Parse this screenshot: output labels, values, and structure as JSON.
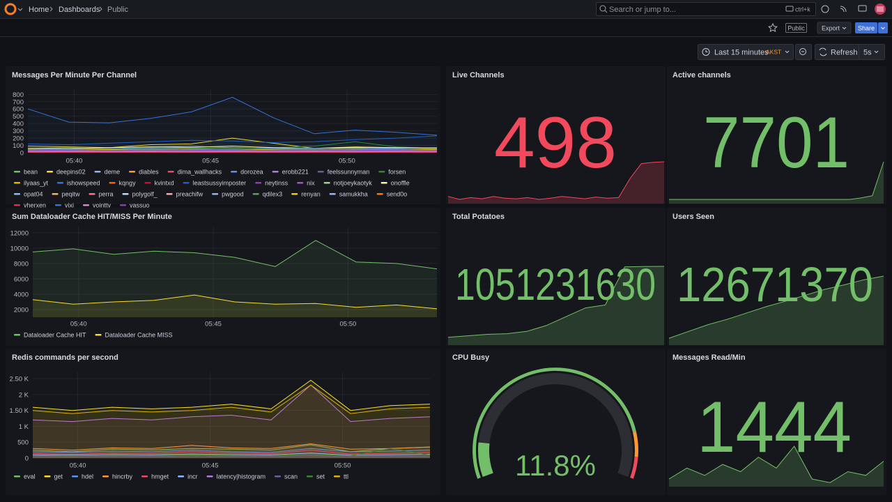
{
  "header": {
    "breadcrumbs": [
      "Home",
      "Dashboards",
      "Public"
    ],
    "search_placeholder": "Search or jump to...",
    "shortcut": "ctrl+k"
  },
  "toolbar": {
    "badge": "Public",
    "export": "Export",
    "share": "Share"
  },
  "time_picker": {
    "range": "Last 15 minutes",
    "timezone": "AKST",
    "refresh": "Refresh",
    "interval": "5s"
  },
  "panels": [
    {
      "type": "line",
      "title": "Messages Per Minute Per Channel",
      "fill_opacity": 0.04,
      "x": [
        38.3,
        39.8,
        41.3,
        42.8,
        44.3,
        45.8,
        47.3,
        48.8,
        50.3,
        51.8,
        53.3
      ],
      "xlim": [
        38.3,
        53.3
      ],
      "xticks": [
        {
          "value": 40,
          "label": "05:40"
        },
        {
          "value": 45,
          "label": "05:45"
        },
        {
          "value": 50,
          "label": "05:50"
        }
      ],
      "ylim": [
        0,
        870
      ],
      "yticks": [
        0,
        100,
        200,
        300,
        400,
        500,
        600,
        700,
        800
      ],
      "grid": true,
      "series": [
        {
          "name": "bean",
          "color": "#73bf69",
          "values": [
            40,
            30,
            35,
            50,
            45,
            40,
            30,
            35,
            60,
            40,
            45
          ]
        },
        {
          "name": "deepins02",
          "color": "#fade2a",
          "values": [
            90,
            80,
            70,
            110,
            120,
            200,
            130,
            60,
            80,
            70,
            60
          ]
        },
        {
          "name": "deme",
          "color": "#8ab8ff",
          "values": [
            20,
            25,
            30,
            20,
            25,
            30,
            20,
            25,
            30,
            20,
            25
          ]
        },
        {
          "name": "diables",
          "color": "#ff9830",
          "values": [
            30,
            40,
            35,
            50,
            60,
            40,
            35,
            30,
            45,
            40,
            35
          ]
        },
        {
          "name": "dima_wallhacks",
          "color": "#f2495c",
          "values": [
            10,
            15,
            20,
            10,
            15,
            20,
            10,
            15,
            20,
            10,
            15
          ]
        },
        {
          "name": "dorozea",
          "color": "#5794f2",
          "values": [
            60,
            70,
            50,
            80,
            90,
            70,
            60,
            50,
            70,
            60,
            70
          ]
        },
        {
          "name": "erobb221",
          "color": "#b877d9",
          "values": [
            20,
            30,
            25,
            20,
            30,
            25,
            20,
            30,
            25,
            20,
            30
          ]
        },
        {
          "name": "feelssunnyman",
          "color": "#705da0",
          "values": [
            15,
            20,
            15,
            20,
            15,
            20,
            15,
            20,
            15,
            20,
            15
          ]
        },
        {
          "name": "forsen",
          "color": "#37872d",
          "values": [
            50,
            60,
            55,
            70,
            65,
            60,
            70,
            90,
            150,
            80,
            60
          ]
        },
        {
          "name": "ilyaas_yt",
          "color": "#e0b400",
          "values": [
            30,
            35,
            40,
            35,
            30,
            35,
            40,
            35,
            30,
            35,
            40
          ]
        },
        {
          "name": "ishowspeed",
          "color": "#3274d9",
          "values": [
            600,
            420,
            410,
            470,
            560,
            760,
            480,
            260,
            310,
            280,
            240
          ]
        },
        {
          "name": "kqngy",
          "color": "#fa6400",
          "values": [
            25,
            20,
            25,
            30,
            25,
            20,
            25,
            30,
            25,
            20,
            25
          ]
        },
        {
          "name": "kvintxd",
          "color": "#c4162a",
          "values": [
            10,
            12,
            8,
            10,
            12,
            8,
            10,
            12,
            8,
            10,
            12
          ]
        },
        {
          "name": "leastsussyimposter",
          "color": "#1f60c4",
          "values": [
            120,
            110,
            130,
            150,
            170,
            160,
            140,
            150,
            180,
            200,
            230
          ]
        },
        {
          "name": "neytinss",
          "color": "#8f3bb8",
          "values": [
            5,
            8,
            6,
            5,
            8,
            6,
            5,
            8,
            6,
            5,
            8
          ]
        },
        {
          "name": "nix",
          "color": "#a352cc",
          "values": [
            40,
            45,
            50,
            45,
            40,
            45,
            50,
            45,
            40,
            45,
            50
          ]
        },
        {
          "name": "notjoeykaotyk",
          "color": "#96d98d",
          "values": [
            20,
            25,
            20,
            25,
            20,
            25,
            20,
            25,
            20,
            25,
            20
          ]
        },
        {
          "name": "onoffle",
          "color": "#fff899",
          "values": [
            60,
            55,
            70,
            80,
            75,
            90,
            70,
            60,
            75,
            70,
            65
          ]
        },
        {
          "name": "opat04",
          "color": "#8ab8ff",
          "values": [
            15,
            10,
            15,
            20,
            15,
            10,
            15,
            20,
            15,
            10,
            15
          ]
        },
        {
          "name": "peqitw",
          "color": "#ffb357",
          "values": [
            30,
            25,
            30,
            35,
            30,
            25,
            30,
            35,
            30,
            25,
            30
          ]
        },
        {
          "name": "perra",
          "color": "#ff7383",
          "values": [
            10,
            8,
            10,
            12,
            10,
            8,
            10,
            12,
            10,
            8,
            10
          ]
        },
        {
          "name": "polygolf_",
          "color": "#c0d8ff",
          "values": [
            5,
            6,
            5,
            6,
            5,
            6,
            5,
            6,
            5,
            6,
            5
          ]
        },
        {
          "name": "preachifw",
          "color": "#ffa6b0",
          "values": [
            8,
            10,
            8,
            10,
            8,
            10,
            8,
            10,
            8,
            10,
            8
          ]
        },
        {
          "name": "pwgood",
          "color": "#97b3e6",
          "values": [
            25,
            30,
            25,
            30,
            25,
            30,
            25,
            30,
            25,
            30,
            25
          ]
        },
        {
          "name": "qdilex3",
          "color": "#56a64b",
          "values": [
            35,
            30,
            35,
            40,
            35,
            30,
            35,
            40,
            35,
            30,
            35
          ]
        },
        {
          "name": "renyan",
          "color": "#f2cc0c",
          "values": [
            45,
            50,
            45,
            60,
            50,
            45,
            50,
            60,
            55,
            50,
            45
          ]
        },
        {
          "name": "samukkha",
          "color": "#8ab8ff",
          "values": [
            20,
            15,
            20,
            25,
            20,
            15,
            20,
            25,
            20,
            15,
            20
          ]
        },
        {
          "name": "send0o",
          "color": "#ff780a",
          "values": [
            12,
            15,
            12,
            15,
            12,
            15,
            12,
            15,
            12,
            15,
            12
          ]
        },
        {
          "name": "vherxen",
          "color": "#e02f44",
          "values": [
            6,
            5,
            6,
            5,
            6,
            5,
            6,
            5,
            6,
            5,
            6
          ]
        },
        {
          "name": "vixi",
          "color": "#3274d9",
          "values": [
            50,
            45,
            55,
            60,
            50,
            45,
            55,
            60,
            50,
            45,
            55
          ]
        },
        {
          "name": "vointtv",
          "color": "#d683ce",
          "values": [
            18,
            20,
            18,
            20,
            18,
            20,
            18,
            20,
            18,
            20,
            18
          ]
        },
        {
          "name": "yassuo",
          "color": "#8f3bb8",
          "values": [
            28,
            30,
            28,
            30,
            28,
            30,
            28,
            30,
            28,
            30,
            28
          ]
        }
      ]
    },
    {
      "type": "stat",
      "title": "Live Channels",
      "value": 498,
      "color": "#f2495c",
      "sparkline": [
        440,
        435,
        438,
        436,
        440,
        437,
        436,
        438,
        435,
        437,
        440,
        438,
        436,
        439,
        437,
        438,
        470,
        495,
        497,
        498
      ]
    },
    {
      "type": "stat",
      "title": "Active channels",
      "value": 7701,
      "color": "#73bf69",
      "sparkline": [
        7650,
        7650,
        7650,
        7650,
        7650,
        7650,
        7650,
        7650,
        7650,
        7650,
        7650,
        7650,
        7650,
        7650,
        7650,
        7650,
        7650,
        7652,
        7655,
        7701
      ]
    },
    {
      "type": "line",
      "title": "Sum Dataloader Cache HIT/MISS Per Minute",
      "fill_opacity": 0.1,
      "x": [
        38.3,
        39.8,
        41.3,
        42.8,
        44.3,
        45.8,
        47.3,
        48.8,
        50.3,
        51.8,
        53.3
      ],
      "xlim": [
        38.3,
        53.3
      ],
      "xticks": [
        {
          "value": 40,
          "label": "05:40"
        },
        {
          "value": 45,
          "label": "05:45"
        },
        {
          "value": 50,
          "label": "05:50"
        }
      ],
      "ylim": [
        1000,
        12800
      ],
      "yticks": [
        2000,
        4000,
        6000,
        8000,
        10000,
        12000
      ],
      "grid": true,
      "series": [
        {
          "name": "Dataloader Cache HIT",
          "color": "#73bf69",
          "values": [
            9500,
            9900,
            9200,
            9600,
            9400,
            8800,
            7600,
            11000,
            8200,
            8000,
            7300
          ]
        },
        {
          "name": "Dataloader Cache MISS",
          "color": "#fade2a",
          "values": [
            3300,
            2700,
            3000,
            3200,
            3900,
            3000,
            2700,
            2800,
            2300,
            2600,
            2100
          ]
        }
      ]
    },
    {
      "type": "stat",
      "title": "Total Potatoes",
      "value": 1051231630,
      "color": "#73bf69",
      "sparkline": [
        1050990000,
        1050995000,
        1051000000,
        1051002000,
        1051010000,
        1051030000,
        1051060000,
        1051090000,
        1051100000,
        1051230000,
        1051231000,
        1051231630
      ]
    },
    {
      "type": "stat",
      "title": "Users Seen",
      "value": 12671370,
      "color": "#73bf69",
      "sparkline": [
        12670000,
        12670150,
        12670300,
        12670420,
        12670560,
        12670700,
        12670820,
        12670950,
        12671080,
        12671180,
        12671290,
        12671370
      ]
    },
    {
      "type": "line",
      "title": "Redis commands per second",
      "fill_opacity": 0.08,
      "x": [
        38.3,
        39.8,
        41.3,
        42.8,
        44.3,
        45.8,
        47.3,
        48.8,
        50.3,
        51.8,
        53.3
      ],
      "xlim": [
        38.3,
        53.3
      ],
      "xticks": [
        {
          "value": 40,
          "label": "05:40"
        },
        {
          "value": 45,
          "label": "05:45"
        },
        {
          "value": 50,
          "label": "05:50"
        }
      ],
      "ylim": [
        0,
        2700
      ],
      "yticks": [
        0,
        500,
        {
          "value": 1000,
          "label": "1 K"
        },
        {
          "value": 1500,
          "label": "1.50 K"
        },
        {
          "value": 2000,
          "label": "2 K"
        },
        {
          "value": 2500,
          "label": "2.50 K"
        }
      ],
      "grid": true,
      "series": [
        {
          "name": "eval",
          "color": "#73bf69",
          "values": [
            250,
            200,
            280,
            260,
            300,
            280,
            250,
            420,
            200,
            300,
            350
          ]
        },
        {
          "name": "get",
          "color": "#fade2a",
          "values": [
            1600,
            1500,
            1600,
            1550,
            1600,
            1700,
            1550,
            2450,
            1500,
            1650,
            1700
          ]
        },
        {
          "name": "hdel",
          "color": "#5794f2",
          "values": [
            200,
            180,
            220,
            200,
            250,
            200,
            180,
            300,
            200,
            220,
            250
          ]
        },
        {
          "name": "hincrby",
          "color": "#ff9830",
          "values": [
            300,
            250,
            320,
            300,
            400,
            320,
            300,
            450,
            280,
            300,
            350
          ]
        },
        {
          "name": "hmget",
          "color": "#f2495c",
          "values": [
            150,
            120,
            160,
            150,
            200,
            160,
            140,
            250,
            130,
            150,
            180
          ]
        },
        {
          "name": "incr",
          "color": "#8ab8ff",
          "values": [
            100,
            90,
            110,
            100,
            130,
            110,
            100,
            160,
            90,
            100,
            120
          ]
        },
        {
          "name": "latency|histogram",
          "color": "#b877d9",
          "values": [
            1200,
            1150,
            1250,
            1200,
            1300,
            1350,
            1200,
            2300,
            1150,
            1250,
            1300
          ]
        },
        {
          "name": "scan",
          "color": "#705da0",
          "values": [
            50,
            40,
            60,
            50,
            70,
            60,
            50,
            80,
            40,
            50,
            60
          ]
        },
        {
          "name": "set",
          "color": "#37872d",
          "values": [
            80,
            70,
            90,
            80,
            100,
            90,
            80,
            130,
            70,
            300,
            90
          ]
        },
        {
          "name": "ttl",
          "color": "#e0b400",
          "values": [
            1500,
            1400,
            1500,
            1450,
            1500,
            1600,
            1450,
            2300,
            1400,
            1550,
            1600
          ]
        }
      ]
    },
    {
      "type": "gauge",
      "title": "CPU Busy",
      "value": 11.8,
      "value_label": "11.8%",
      "range": [
        0,
        100
      ],
      "color": "#73bf69",
      "thresholds": [
        {
          "value": 0,
          "color": "#73bf69"
        },
        {
          "value": 85,
          "color": "#ff9830"
        },
        {
          "value": 93,
          "color": "#f2495c"
        }
      ]
    },
    {
      "type": "stat",
      "title": "Messages Read/Min",
      "value": 1444,
      "color": "#73bf69",
      "sparkline": [
        1200,
        1350,
        1250,
        1400,
        1300,
        1500,
        1350,
        1650,
        1200,
        1150,
        1300,
        1250,
        1444
      ]
    }
  ]
}
